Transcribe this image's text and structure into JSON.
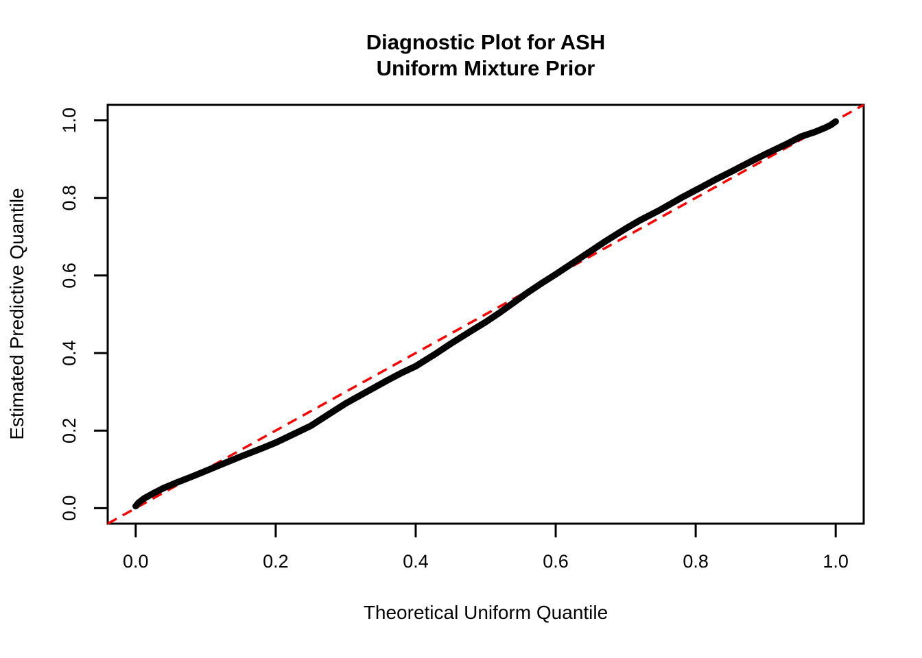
{
  "chart_data": {
    "type": "line",
    "title": "Diagnostic Plot for ASH Uniform Mixture Prior",
    "title_lines": [
      "Diagnostic Plot for ASH",
      "Uniform Mixture Prior"
    ],
    "xlabel": "Theoretical Uniform Quantile",
    "ylabel": "Estimated Predictive Quantile",
    "xlim": [
      -0.04,
      1.04
    ],
    "ylim": [
      -0.04,
      1.04
    ],
    "x_tick_values": [
      0.0,
      0.2,
      0.4,
      0.6,
      0.8,
      1.0
    ],
    "x_tick_labels": [
      "0.0",
      "0.2",
      "0.4",
      "0.6",
      "0.8",
      "1.0"
    ],
    "y_tick_values": [
      0.0,
      0.2,
      0.4,
      0.6,
      0.8,
      1.0
    ],
    "y_tick_labels": [
      "0.0",
      "0.2",
      "0.4",
      "0.6",
      "0.8",
      "1.0"
    ],
    "grid": false,
    "legend": "none",
    "series": [
      {
        "name": "estimated-predictive-quantiles",
        "color": "#000000",
        "style": "solid",
        "points": [
          [
            0.0,
            0.005
          ],
          [
            0.004,
            0.014
          ],
          [
            0.012,
            0.025
          ],
          [
            0.025,
            0.038
          ],
          [
            0.04,
            0.052
          ],
          [
            0.06,
            0.067
          ],
          [
            0.08,
            0.081
          ],
          [
            0.1,
            0.096
          ],
          [
            0.12,
            0.111
          ],
          [
            0.15,
            0.133
          ],
          [
            0.18,
            0.154
          ],
          [
            0.2,
            0.169
          ],
          [
            0.22,
            0.186
          ],
          [
            0.25,
            0.212
          ],
          [
            0.28,
            0.247
          ],
          [
            0.3,
            0.27
          ],
          [
            0.33,
            0.3
          ],
          [
            0.36,
            0.33
          ],
          [
            0.38,
            0.349
          ],
          [
            0.4,
            0.366
          ],
          [
            0.43,
            0.4
          ],
          [
            0.45,
            0.424
          ],
          [
            0.48,
            0.458
          ],
          [
            0.5,
            0.48
          ],
          [
            0.52,
            0.504
          ],
          [
            0.54,
            0.53
          ],
          [
            0.56,
            0.556
          ],
          [
            0.58,
            0.58
          ],
          [
            0.6,
            0.603
          ],
          [
            0.62,
            0.627
          ],
          [
            0.65,
            0.663
          ],
          [
            0.67,
            0.687
          ],
          [
            0.7,
            0.721
          ],
          [
            0.72,
            0.742
          ],
          [
            0.75,
            0.77
          ],
          [
            0.78,
            0.801
          ],
          [
            0.8,
            0.82
          ],
          [
            0.83,
            0.849
          ],
          [
            0.85,
            0.867
          ],
          [
            0.88,
            0.895
          ],
          [
            0.9,
            0.913
          ],
          [
            0.93,
            0.939
          ],
          [
            0.95,
            0.958
          ],
          [
            0.97,
            0.97
          ],
          [
            0.985,
            0.981
          ],
          [
            0.993,
            0.988
          ],
          [
            1.0,
            0.997
          ]
        ]
      },
      {
        "name": "reference-diagonal-y-equals-x",
        "color": "#FF0000",
        "style": "dashed",
        "points": [
          [
            -0.04,
            -0.04
          ],
          [
            1.04,
            1.04
          ]
        ]
      }
    ]
  },
  "colors": {
    "curve": "#000000",
    "reference_line": "#FF0000",
    "background": "#FFFFFF",
    "text": "#000000",
    "box": "#000000"
  }
}
